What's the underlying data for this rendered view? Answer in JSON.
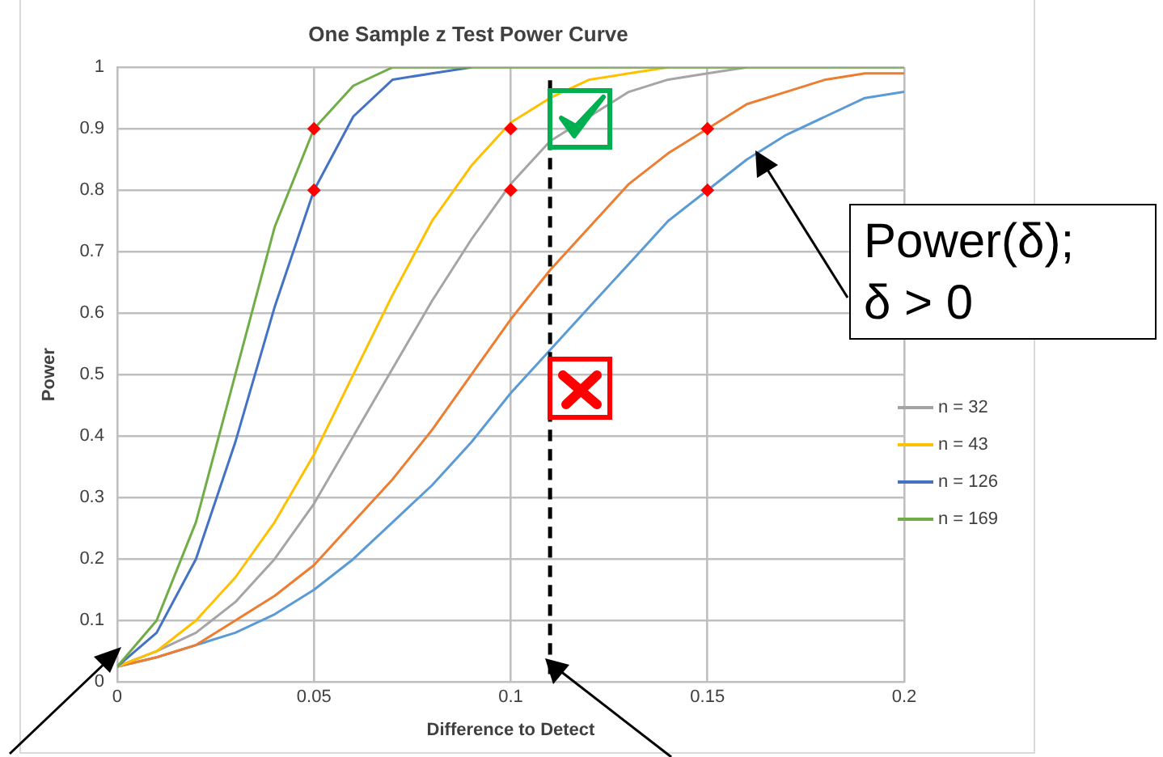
{
  "chart_data": {
    "type": "line",
    "title": "One Sample z Test Power Curve",
    "xlabel": "Difference to Detect",
    "ylabel": "Power",
    "x": [
      0,
      0.01,
      0.02,
      0.03,
      0.04,
      0.05,
      0.06,
      0.07,
      0.08,
      0.09,
      0.1,
      0.11,
      0.12,
      0.13,
      0.14,
      0.15,
      0.16,
      0.17,
      0.18,
      0.19,
      0.2
    ],
    "series": [
      {
        "color": "#5b9bd5",
        "values": [
          0.025,
          0.04,
          0.06,
          0.08,
          0.11,
          0.15,
          0.2,
          0.26,
          0.32,
          0.39,
          0.47,
          0.54,
          0.61,
          0.68,
          0.75,
          0.8,
          0.85,
          0.89,
          0.92,
          0.95,
          0.96
        ]
      },
      {
        "color": "#ed7d31",
        "values": [
          0.025,
          0.04,
          0.06,
          0.1,
          0.14,
          0.19,
          0.26,
          0.33,
          0.41,
          0.5,
          0.59,
          0.67,
          0.74,
          0.81,
          0.86,
          0.9,
          0.94,
          0.96,
          0.98,
          0.99,
          0.99
        ]
      },
      {
        "name": "n = 32",
        "color": "#a5a5a5",
        "values": [
          0.025,
          0.05,
          0.08,
          0.13,
          0.2,
          0.29,
          0.4,
          0.51,
          0.62,
          0.72,
          0.81,
          0.88,
          0.92,
          0.96,
          0.98,
          0.99,
          1,
          null,
          null,
          null,
          null
        ]
      },
      {
        "name": "n = 43",
        "color": "#ffc000",
        "values": [
          0.025,
          0.05,
          0.1,
          0.17,
          0.26,
          0.37,
          0.5,
          0.63,
          0.75,
          0.84,
          0.91,
          0.95,
          0.98,
          0.99,
          1,
          null,
          null,
          null,
          null,
          null,
          null
        ]
      },
      {
        "name": "n = 126",
        "color": "#4472c4",
        "values": [
          0.025,
          0.08,
          0.2,
          0.39,
          0.61,
          0.8,
          0.92,
          0.98,
          0.99,
          1,
          null,
          null,
          null,
          null,
          null,
          null,
          null,
          null,
          null,
          null,
          null
        ]
      },
      {
        "name": "n = 169",
        "color": "#70ad47",
        "values": [
          0.025,
          0.1,
          0.26,
          0.5,
          0.74,
          0.9,
          0.97,
          1,
          1,
          1,
          1,
          1,
          1,
          1,
          1,
          1,
          1,
          1,
          1,
          1,
          1
        ]
      },
      {
        "type": "scatter",
        "marker": "diamond",
        "color": "#ff0000",
        "x": [
          0.05,
          0.05,
          0.1,
          0.1,
          0.15,
          0.15
        ],
        "values": [
          0.8,
          0.9,
          0.8,
          0.9,
          0.8,
          0.9
        ]
      }
    ],
    "xlim": [
      0,
      0.2
    ],
    "xticks": [
      0,
      0.05,
      0.1,
      0.15,
      0.2
    ],
    "ylim": [
      0,
      1
    ],
    "yticks": [
      0,
      0.1,
      0.2,
      0.3,
      0.4,
      0.5,
      0.6,
      0.7,
      0.8,
      0.9,
      1
    ],
    "grid": true,
    "legend": "right",
    "ref_lines": [
      {
        "axis": "x",
        "value": 0.11,
        "color": "#000000",
        "line_style": "dashed"
      }
    ],
    "annotations": [
      "Power(δ); δ > 0"
    ]
  }
}
